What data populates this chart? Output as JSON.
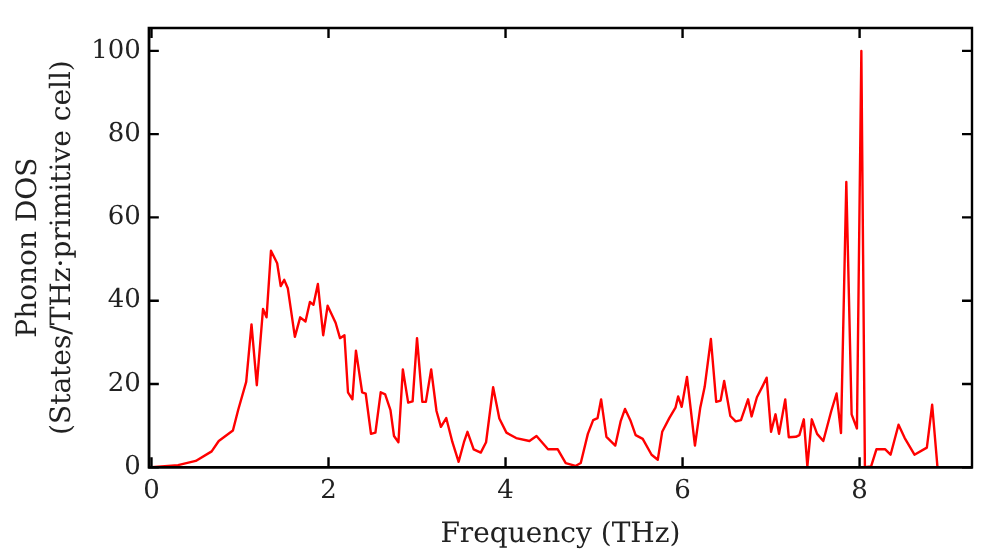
{
  "chart_data": {
    "type": "line",
    "xlabel": "Frequency (THz)",
    "ylabel": "Phonon DOS\n(States/THz·primitive cell)",
    "xlim": [
      -0.03,
      9.27
    ],
    "ylim": [
      0,
      105.5
    ],
    "xticks": [
      0,
      2,
      4,
      6,
      8
    ],
    "yticks": [
      0,
      20,
      40,
      60,
      80,
      100
    ],
    "grid": false,
    "legend": false,
    "marker": "none",
    "line_style": "solid",
    "series": [
      {
        "color": "#ff0000",
        "x": [
          0,
          0.3,
          0.5,
          0.68,
          0.76,
          0.92,
          0.98,
          1.07,
          1.13,
          1.19,
          1.26,
          1.3,
          1.35,
          1.42,
          1.46,
          1.5,
          1.54,
          1.62,
          1.68,
          1.74,
          1.79,
          1.83,
          1.88,
          1.94,
          1.99,
          2.08,
          2.13,
          2.18,
          2.22,
          2.27,
          2.31,
          2.38,
          2.42,
          2.48,
          2.53,
          2.59,
          2.64,
          2.7,
          2.74,
          2.79,
          2.84,
          2.9,
          2.95,
          3.0,
          3.06,
          3.1,
          3.16,
          3.22,
          3.27,
          3.33,
          3.4,
          3.47,
          3.53,
          3.57,
          3.64,
          3.72,
          3.78,
          3.86,
          3.93,
          4.01,
          4.12,
          4.27,
          4.35,
          4.48,
          4.59,
          4.68,
          4.79,
          4.85,
          4.93,
          4.99,
          5.04,
          5.08,
          5.14,
          5.24,
          5.3,
          5.35,
          5.41,
          5.47,
          5.55,
          5.65,
          5.72,
          5.77,
          5.85,
          5.92,
          5.95,
          5.99,
          6.05,
          6.14,
          6.2,
          6.25,
          6.32,
          6.38,
          6.43,
          6.47,
          6.54,
          6.6,
          6.66,
          6.74,
          6.78,
          6.84,
          6.9,
          6.95,
          7.0,
          7.05,
          7.09,
          7.16,
          7.2,
          7.28,
          7.32,
          7.37,
          7.41,
          7.46,
          7.52,
          7.59,
          7.68,
          7.74,
          7.79,
          7.85,
          7.91,
          7.97,
          8.02,
          8.06,
          8.13,
          8.19,
          8.29,
          8.35,
          8.44,
          8.51,
          8.62,
          8.76,
          8.82,
          8.88
        ],
        "values": [
          0,
          0.5,
          1.5,
          3.8,
          6.3,
          8.8,
          13.8,
          20.5,
          34.3,
          19.7,
          38,
          36,
          52,
          49,
          43.5,
          45,
          43,
          31.3,
          36,
          35,
          39.7,
          39,
          44,
          31.7,
          38.8,
          34.7,
          31,
          31.7,
          18,
          16.3,
          28,
          18,
          17.7,
          8,
          8.3,
          18,
          17.5,
          13.7,
          7.5,
          6,
          23.5,
          15.5,
          15.8,
          31,
          15.7,
          15.7,
          23.5,
          13.5,
          9.7,
          11.8,
          6,
          1.3,
          6,
          8.5,
          4.3,
          3.5,
          6,
          19.2,
          11.7,
          8.3,
          7,
          6.3,
          7.5,
          4.3,
          4.3,
          1,
          0.3,
          1,
          8,
          11.3,
          11.8,
          16.3,
          7.3,
          5.2,
          11,
          14,
          11.3,
          7.7,
          6.8,
          3,
          1.8,
          8.5,
          11.8,
          14.3,
          17,
          14.5,
          21.7,
          5.2,
          14.3,
          19.3,
          30.8,
          15.7,
          16,
          20.7,
          12.3,
          11,
          11.3,
          16.3,
          12.2,
          16.8,
          19.3,
          21.5,
          8.5,
          12.7,
          8,
          16.3,
          7.2,
          7.3,
          7.7,
          11.5,
          0.2,
          11.5,
          8,
          6.3,
          13.5,
          17.7,
          8.2,
          68.5,
          12.7,
          9.3,
          100,
          0,
          0.2,
          4.3,
          4.3,
          3,
          10.2,
          7,
          3,
          4.7,
          15,
          0
        ]
      }
    ]
  }
}
